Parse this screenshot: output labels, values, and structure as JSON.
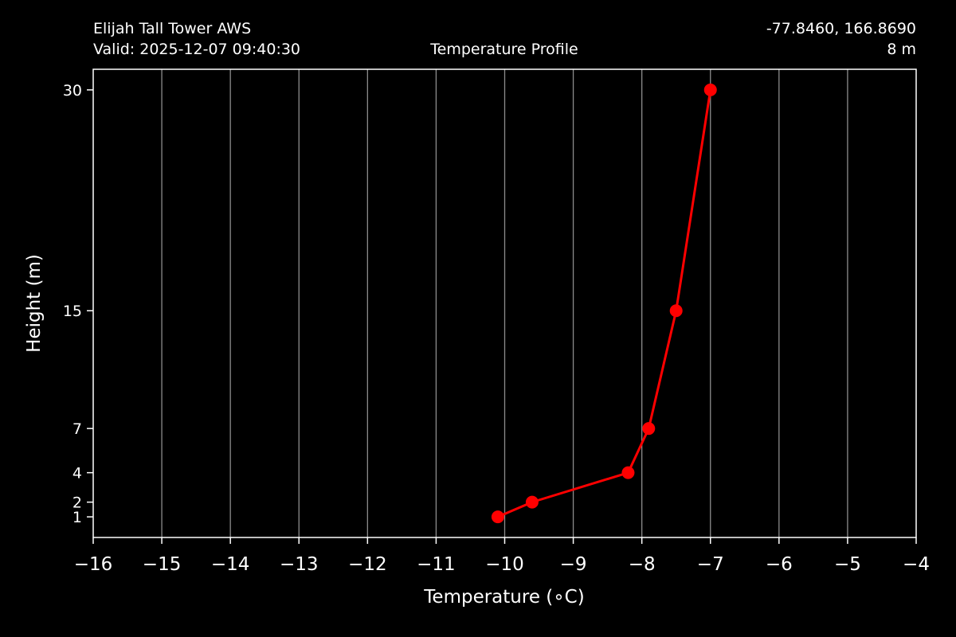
{
  "header": {
    "station": "Elijah Tall Tower AWS",
    "valid": "Valid: 2025-12-07 09:40:30",
    "center_title": "Temperature Profile",
    "coords": "-77.8460, 166.8690",
    "elevation": "8 m"
  },
  "chart_data": {
    "type": "line",
    "title": "Temperature Profile",
    "xlabel": "Temperature (∘C)",
    "ylabel": "Height (m)",
    "xlim": [
      -16,
      -4
    ],
    "ylim": [
      -0.4,
      31.4
    ],
    "xticks": [
      -16,
      -15,
      -14,
      -13,
      -12,
      -11,
      -10,
      -9,
      -8,
      -7,
      -6,
      -5,
      -4
    ],
    "xtick_labels": [
      "−16",
      "−15",
      "−14",
      "−13",
      "−12",
      "−11",
      "−10",
      "−9",
      "−8",
      "−7",
      "−6",
      "−5",
      "−4"
    ],
    "yticks": [
      1,
      2,
      4,
      7,
      15,
      30
    ],
    "ytick_labels": [
      "1",
      "2",
      "4",
      "7",
      "15",
      "30"
    ],
    "grid": "vertical",
    "series": [
      {
        "color": "#ff0000",
        "x": [
          -10.1,
          -9.6,
          -8.2,
          -7.9,
          -7.5,
          -7.0
        ],
        "y": [
          1,
          2,
          4,
          7,
          15,
          30
        ]
      }
    ]
  }
}
